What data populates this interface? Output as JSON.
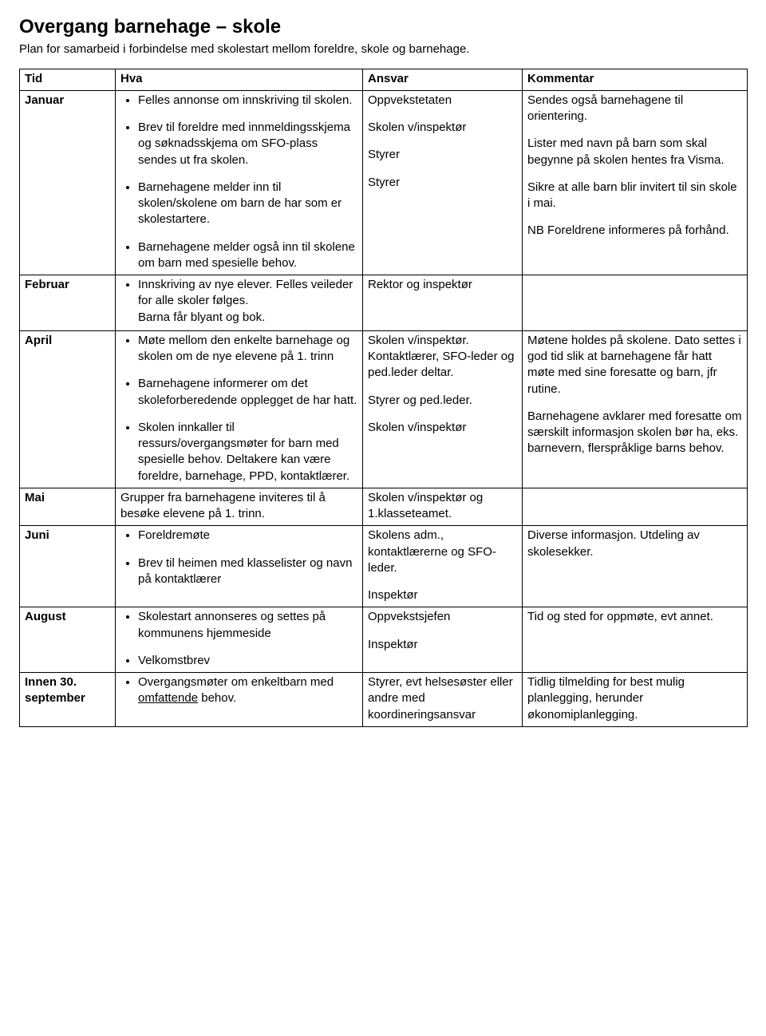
{
  "title": "Overgang barnehage – skole",
  "subtitle": "Plan for samarbeid i forbindelse med skolestart mellom foreldre, skole og barnehage.",
  "headers": [
    "Tid",
    "Hva",
    "Ansvar",
    "Kommentar"
  ],
  "rows": [
    {
      "tid": "Januar",
      "hva_items": [
        "Felles annonse om innskriving til skolen.",
        "Brev til foreldre med innmeldingsskjema og søknadsskjema om SFO-plass sendes ut fra skolen.",
        "Barnehagene melder inn til skolen/skolene om barn de har som er skolestartere.",
        "Barnehagene melder også inn til skolene om barn med spesielle behov."
      ],
      "ansvar_blocks": [
        "Oppvekstetaten",
        "Skolen v/inspektør",
        "Styrer",
        "Styrer"
      ],
      "kommentar_blocks": [
        "Sendes også barnehagene til orientering.",
        "Lister med navn på barn som skal begynne på skolen hentes fra Visma.",
        "Sikre at alle barn blir invitert til sin skole i mai.",
        "NB Foreldrene informeres på forhånd."
      ]
    },
    {
      "tid": "Februar",
      "hva_items": [
        "Innskriving av nye elever. Felles veileder for alle skoler følges.\nBarna får blyant og bok."
      ],
      "ansvar_blocks": [
        "Rektor og inspektør"
      ],
      "kommentar_blocks": [
        ""
      ]
    },
    {
      "tid": "April",
      "hva_items": [
        "Møte mellom den enkelte barnehage og skolen om de nye elevene på 1. trinn",
        "Barnehagene informerer om det skoleforberedende opplegget de har hatt.",
        "Skolen innkaller til ressurs/overgangsmøter for barn med spesielle behov. Deltakere kan være foreldre, barnehage, PPD, kontaktlærer."
      ],
      "ansvar_blocks": [
        "Skolen v/inspektør. Kontaktlærer, SFO-leder og ped.leder deltar.",
        "Styrer og ped.leder.",
        "Skolen v/inspektør"
      ],
      "kommentar_blocks": [
        "Møtene holdes på skolene. Dato settes i god tid slik at barnehagene får hatt møte med sine foresatte og barn, jfr rutine.",
        "Barnehagene avklarer med foresatte om særskilt informasjon skolen bør ha, eks. barnevern, flerspråklige barns behov."
      ]
    },
    {
      "tid": "Mai",
      "hva_plain": "Grupper fra barnehagene inviteres til å besøke elevene på 1. trinn.",
      "ansvar_blocks": [
        "Skolen v/inspektør og 1.klasseteamet."
      ],
      "kommentar_blocks": [
        ""
      ]
    },
    {
      "tid": "Juni",
      "hva_items": [
        "Foreldremøte",
        "Brev til heimen med klasselister og navn på kontaktlærer"
      ],
      "ansvar_blocks": [
        "Skolens adm., kontaktlærerne og SFO-leder.",
        "Inspektør"
      ],
      "kommentar_blocks": [
        "Diverse informasjon. Utdeling av skolesekker."
      ]
    },
    {
      "tid": "August",
      "hva_items": [
        "Skolestart annonseres og settes på kommunens hjemmeside",
        "Velkomstbrev"
      ],
      "ansvar_blocks": [
        "Oppvekstsjefen",
        "Inspektør"
      ],
      "kommentar_blocks": [
        "Tid og sted for oppmøte, evt annet."
      ]
    },
    {
      "tid": "Innen 30. september",
      "hva_items_html": [
        "Overgangsmøter om enkeltbarn med <span class=\"u\">omfattende</span> behov."
      ],
      "ansvar_blocks": [
        "Styrer, evt helsesøster eller andre med koordineringsansvar"
      ],
      "kommentar_blocks": [
        "Tidlig tilmelding for best mulig planlegging, herunder økonomiplanlegging."
      ]
    }
  ]
}
